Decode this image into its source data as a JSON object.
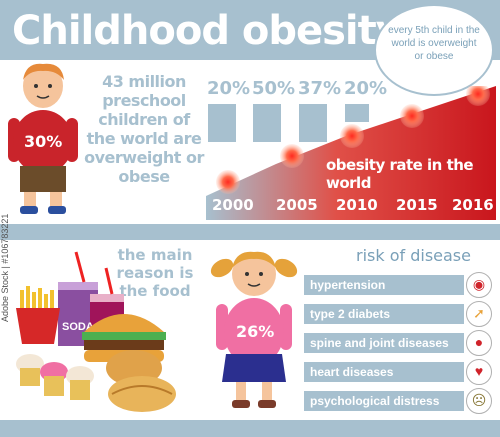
{
  "header": {
    "title": "Childhood obesity",
    "bubble_text": "every 5th child in the world is overweight or obese"
  },
  "stat": {
    "text": "43 million preschool children of the world are overweight or obese",
    "boy_percent": "30%",
    "girl_percent": "26%"
  },
  "chart_data": {
    "type": "bar",
    "categories": [
      "2000",
      "2005",
      "2010",
      "2015",
      "2016"
    ],
    "bar_labels": [
      "20%",
      "50%",
      "37%",
      "20%"
    ],
    "annotation": "obesity rate in the world"
  },
  "food": {
    "main_reason": "the main reason is the food",
    "soda_label": "SODA"
  },
  "risk": {
    "title": "risk of disease",
    "items": [
      {
        "label": "hypertension",
        "icon": "pressure-gauge-icon"
      },
      {
        "label": "type 2 diabets",
        "icon": "syringe-icon"
      },
      {
        "label": "spine and joint diseases",
        "icon": "spine-icon"
      },
      {
        "label": "heart diseases",
        "icon": "heart-icon"
      },
      {
        "label": "psychological distress",
        "icon": "sad-face-icon"
      }
    ]
  },
  "watermark": "Adobe Stock | #106783221",
  "colors": {
    "band": "#a7c0cf",
    "accent_red": "#d0232a",
    "boy_shirt": "#c9242b",
    "girl_shirt": "#f06fa3"
  }
}
